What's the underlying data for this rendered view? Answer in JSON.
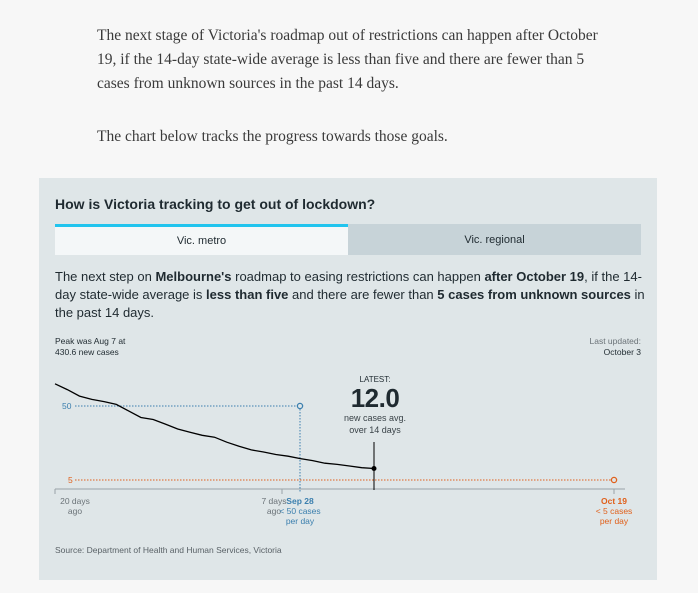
{
  "intro": {
    "paragraph1": "The next stage of Victoria's roadmap out of restrictions can happen after October 19, if the 14-day state-wide average is less than five and there are fewer than 5 cases from unknown sources in the past 14 days.",
    "paragraph2": "The chart below tracks the progress towards those goals."
  },
  "card": {
    "title": "How is Victoria tracking to get out of lockdown?",
    "tabs": [
      {
        "label": "Vic. metro",
        "active": true
      },
      {
        "label": "Vic. regional",
        "active": false
      }
    ],
    "description": {
      "t1": "The next step on ",
      "b1": "Melbourne's",
      "t2": " roadmap to easing restrictions can happen ",
      "b2": "after October 19",
      "t3": ", if the 14-day state-wide average is ",
      "b3": "less than five",
      "t4": " and there are fewer than ",
      "b4": "5 cases from unknown sources",
      "t5": " in the past 14 days."
    },
    "peak": {
      "line1": "Peak was Aug 7 at",
      "line2": "430.6 new cases"
    },
    "last_updated": {
      "label": "Last updated:",
      "value": "October 3"
    },
    "latest": {
      "label": "LATEST:",
      "value": "12.0",
      "sub1": "new cases avg.",
      "sub2": "over 14 days"
    },
    "source": "Source: Department of Health and Human Services, Victoria",
    "colors": {
      "line": "#000000",
      "target50": "#3b7fae",
      "target5": "#e0601b",
      "tab_accent": "#21c4ee",
      "card_bg": "#dfe6e8"
    }
  },
  "chart_data": {
    "type": "line",
    "x_labels": [
      {
        "line1": "20 days",
        "line2": "ago"
      },
      {
        "line1": "7 days",
        "line2": "ago"
      }
    ],
    "milestones": [
      {
        "date": "Sep 28",
        "note1": "< 50 cases",
        "note2": "per day",
        "color": "#3b7fae"
      },
      {
        "date": "Oct 19",
        "note1": "< 5 cases",
        "note2": "per day",
        "color": "#e0601b"
      }
    ],
    "y_ticks": [
      50,
      5
    ],
    "series": [
      {
        "values": [
          63.5,
          60,
          56,
          54,
          52.7,
          51,
          47,
          43,
          41.8,
          39,
          36,
          34,
          32.2,
          31,
          28,
          25.5,
          23.3,
          22,
          20.5,
          19.5,
          18,
          16.8,
          15.2,
          14.5,
          13.5,
          12.5,
          12.0
        ]
      }
    ],
    "latest_value": 12.0
  }
}
